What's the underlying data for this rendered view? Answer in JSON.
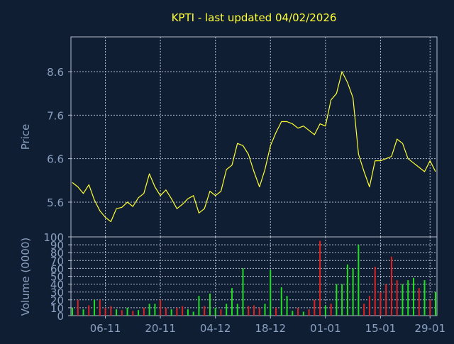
{
  "title": "KPTI - last updated 04/02/2026",
  "colors": {
    "background": "#0f1e33",
    "frame": "#b4bccb",
    "grid": "#b4bccb",
    "title": "#ffff33",
    "text": "#8aa0c0",
    "price_line": "#ffff33",
    "volume_up": "#22dd22",
    "volume_down": "#dd2222"
  },
  "chart_data": [
    {
      "type": "line",
      "name": "price-chart",
      "ylabel": "Price",
      "ylim": [
        4.8,
        9.4
      ],
      "yticks": [
        5.6,
        6.6,
        7.6,
        8.6
      ],
      "ytick_labels": [
        "5.6",
        "6.6",
        "7.6",
        "8.6"
      ],
      "grid": true,
      "x": [
        "29-10",
        "30-10",
        "31-10",
        "03-11",
        "04-11",
        "05-11",
        "06-11",
        "07-11",
        "10-11",
        "11-11",
        "12-11",
        "13-11",
        "14-11",
        "17-11",
        "18-11",
        "19-11",
        "20-11",
        "21-11",
        "24-11",
        "25-11",
        "26-11",
        "28-11",
        "01-12",
        "02-12",
        "03-12",
        "04-12",
        "05-12",
        "08-12",
        "09-12",
        "10-12",
        "11-12",
        "12-12",
        "15-12",
        "16-12",
        "17-12",
        "18-12",
        "19-12",
        "22-12",
        "23-12",
        "24-12",
        "26-12",
        "29-12",
        "30-12",
        "31-12",
        "02-01",
        "05-01",
        "06-01",
        "07-01",
        "08-01",
        "09-01",
        "12-01",
        "13-01",
        "14-01",
        "15-01",
        "16-01",
        "20-01",
        "21-01",
        "22-01",
        "23-01",
        "26-01",
        "27-01",
        "28-01",
        "29-01",
        "30-01",
        "02-02",
        "03-02",
        "04-02"
      ],
      "y": [
        6.05,
        5.95,
        5.8,
        6.0,
        5.65,
        5.4,
        5.25,
        5.15,
        5.45,
        5.48,
        5.6,
        5.5,
        5.7,
        5.8,
        6.25,
        5.95,
        5.75,
        5.88,
        5.68,
        5.45,
        5.55,
        5.68,
        5.75,
        5.35,
        5.45,
        5.85,
        5.75,
        5.85,
        6.35,
        6.45,
        6.95,
        6.9,
        6.7,
        6.3,
        5.95,
        6.35,
        6.9,
        7.2,
        7.45,
        7.45,
        7.4,
        7.3,
        7.35,
        7.25,
        7.15,
        7.4,
        7.35,
        7.95,
        8.1,
        8.6,
        8.35,
        8.0,
        6.7,
        6.3,
        5.95,
        6.55,
        6.55,
        6.6,
        6.65,
        7.05,
        6.95,
        6.6,
        6.5,
        6.4,
        6.3,
        6.55,
        6.3
      ]
    },
    {
      "type": "bar",
      "name": "volume-chart",
      "ylabel": "Volume (0000)",
      "ylim": [
        0,
        100
      ],
      "yticks": [
        0,
        10,
        20,
        30,
        40,
        50,
        60,
        70,
        80,
        90,
        100
      ],
      "ytick_labels": [
        "0",
        "10",
        "20",
        "30",
        "40",
        "50",
        "60",
        "70",
        "80",
        "90",
        "100"
      ],
      "xtick_labels": [
        "06-11",
        "20-11",
        "04-12",
        "18-12",
        "01-01",
        "15-01",
        "29-01"
      ],
      "xtick_indices": [
        6,
        16,
        26,
        36,
        46,
        56,
        65
      ],
      "grid": true,
      "values": [
        10,
        20,
        8,
        13,
        20,
        20,
        10,
        12,
        8,
        7,
        10,
        6,
        7,
        10,
        15,
        15,
        20,
        10,
        8,
        10,
        12,
        8,
        5,
        25,
        12,
        28,
        10,
        8,
        15,
        35,
        15,
        60,
        12,
        13,
        10,
        15,
        58,
        10,
        36,
        25,
        6,
        10,
        5,
        8,
        20,
        95,
        13,
        15,
        40,
        40,
        65,
        60,
        90,
        15,
        25,
        62,
        30,
        40,
        75,
        45,
        40,
        45,
        48,
        35,
        45,
        20,
        30
      ],
      "directions": [
        "up",
        "down",
        "up",
        "down",
        "up",
        "down",
        "down",
        "down",
        "up",
        "down",
        "up",
        "down",
        "up",
        "down",
        "up",
        "up",
        "down",
        "down",
        "up",
        "down",
        "down",
        "up",
        "up",
        "up",
        "down",
        "up",
        "up",
        "down",
        "up",
        "up",
        "up",
        "up",
        "down",
        "down",
        "down",
        "up",
        "up",
        "down",
        "up",
        "up",
        "up",
        "down",
        "up",
        "down",
        "down",
        "down",
        "up",
        "down",
        "up",
        "up",
        "up",
        "up",
        "up",
        "down",
        "down",
        "down",
        "down",
        "down",
        "down",
        "down",
        "up",
        "up",
        "up",
        "down",
        "up",
        "down",
        "up"
      ]
    }
  ]
}
